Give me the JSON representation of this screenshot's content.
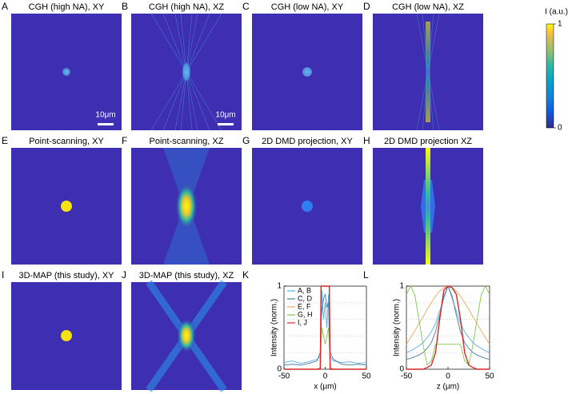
{
  "panels": [
    {
      "letter": "A",
      "title": "CGH (high NA), XY"
    },
    {
      "letter": "B",
      "title": "CGH (high NA), XZ"
    },
    {
      "letter": "C",
      "title": "CGH (low NA), XY"
    },
    {
      "letter": "D",
      "title": "CGH (low NA), XZ"
    },
    {
      "letter": "E",
      "title": "Point-scanning, XY"
    },
    {
      "letter": "F",
      "title": "Point-scanning, XZ"
    },
    {
      "letter": "G",
      "title": "2D DMD projection, XY"
    },
    {
      "letter": "H",
      "title": "2D DMD projection XZ"
    },
    {
      "letter": "I",
      "title": "3D-MAP (this study), XY"
    },
    {
      "letter": "J",
      "title": "3D-MAP (this study), XZ"
    },
    {
      "letter": "K"
    },
    {
      "letter": "L"
    }
  ],
  "scale_bar": "10μm",
  "colorbar": {
    "label": "I (a.u.)",
    "lim": [
      0,
      1
    ],
    "ticks": [
      0,
      1
    ]
  },
  "chart_data": [
    {
      "type": "line",
      "xlabel": "x (μm)",
      "ylabel": "Intensity (norm.)",
      "xlim": [
        -50,
        50
      ],
      "xticks": [
        -50,
        0,
        50
      ],
      "ylim": [
        0,
        1
      ],
      "yticks": [
        0,
        1
      ],
      "minor_yticks": [
        0.2,
        0.4,
        0.6,
        0.8
      ],
      "grid": true,
      "legend": "upper left",
      "x": [
        -50,
        -40,
        -30,
        -20,
        -10,
        -6,
        -5,
        -4,
        -2,
        0,
        2,
        4,
        5,
        6,
        10,
        20,
        30,
        40,
        50
      ],
      "series": [
        {
          "name": "A, B",
          "color": "#5aaee6",
          "values": [
            0.08,
            0.1,
            0.07,
            0.09,
            0.12,
            0.15,
            0.4,
            0.95,
            0.6,
            0.8,
            0.5,
            0.9,
            0.3,
            0.15,
            0.1,
            0.08,
            0.09,
            0.07,
            0.08
          ]
        },
        {
          "name": "C, D",
          "color": "#4a7fa0",
          "values": [
            0.05,
            0.06,
            0.05,
            0.07,
            0.1,
            0.2,
            0.6,
            0.7,
            0.85,
            0.9,
            0.75,
            0.8,
            0.5,
            0.2,
            0.12,
            0.06,
            0.05,
            0.06,
            0.05
          ]
        },
        {
          "name": "E, F",
          "color": "#f0a860",
          "values": [
            0,
            0,
            0,
            0,
            0,
            0.02,
            0.98,
            1,
            1,
            1,
            1,
            1,
            0.98,
            0.02,
            0,
            0,
            0,
            0,
            0
          ]
        },
        {
          "name": "G, H",
          "color": "#7ec850",
          "values": [
            0,
            0,
            0,
            0,
            0,
            0.02,
            0.3,
            0.5,
            0.4,
            0.3,
            0.4,
            0.5,
            0.3,
            0.02,
            0,
            0,
            0,
            0,
            0
          ]
        },
        {
          "name": "I, J",
          "color": "#d62728",
          "values": [
            0,
            0,
            0,
            0,
            0,
            0,
            1,
            1,
            1,
            1,
            1,
            1,
            1,
            0,
            0,
            0,
            0,
            0,
            0
          ]
        }
      ]
    },
    {
      "type": "line",
      "xlabel": "z (μm)",
      "ylabel": "Intensity (norm.)",
      "xlim": [
        -50,
        50
      ],
      "xticks": [
        -50,
        0,
        50
      ],
      "ylim": [
        0,
        1
      ],
      "yticks": [
        0,
        1
      ],
      "minor_yticks": [
        0.2,
        0.4,
        0.6,
        0.8
      ],
      "grid": true,
      "x": [
        -50,
        -45,
        -40,
        -35,
        -30,
        -25,
        -20,
        -15,
        -10,
        -5,
        0,
        5,
        10,
        15,
        20,
        25,
        30,
        35,
        40,
        45,
        50
      ],
      "series": [
        {
          "name": "A, B",
          "color": "#5aaee6",
          "values": [
            0.2,
            0.22,
            0.25,
            0.28,
            0.32,
            0.38,
            0.45,
            0.55,
            0.7,
            0.85,
            1,
            0.85,
            0.7,
            0.55,
            0.45,
            0.38,
            0.32,
            0.28,
            0.25,
            0.22,
            0.2
          ]
        },
        {
          "name": "C, D",
          "color": "#4a7fa0",
          "values": [
            0.12,
            0.13,
            0.15,
            0.17,
            0.2,
            0.25,
            0.32,
            0.45,
            0.65,
            0.88,
            1,
            0.88,
            0.65,
            0.45,
            0.32,
            0.25,
            0.2,
            0.17,
            0.15,
            0.13,
            0.12
          ]
        },
        {
          "name": "E, F",
          "color": "#f0a860",
          "values": [
            0.3,
            0.38,
            0.46,
            0.55,
            0.63,
            0.72,
            0.8,
            0.88,
            0.94,
            0.98,
            1,
            0.98,
            0.94,
            0.88,
            0.8,
            0.72,
            0.63,
            0.55,
            0.46,
            0.38,
            0.3
          ]
        },
        {
          "name": "G, H",
          "color": "#7ec850",
          "values": [
            0.9,
            1,
            0.9,
            0.6,
            0.3,
            0.05,
            0.1,
            0.3,
            0.3,
            0.3,
            0.3,
            0.3,
            0.3,
            0.3,
            0.1,
            0.05,
            0.3,
            0.6,
            0.9,
            1,
            0.9
          ]
        },
        {
          "name": "I, J",
          "color": "#d62728",
          "values": [
            0,
            0,
            0,
            0,
            0,
            0.02,
            0.05,
            0.2,
            0.6,
            0.95,
            1,
            0.98,
            0.9,
            0.6,
            0.2,
            0.05,
            0.02,
            0,
            0,
            0,
            0
          ]
        }
      ]
    }
  ]
}
